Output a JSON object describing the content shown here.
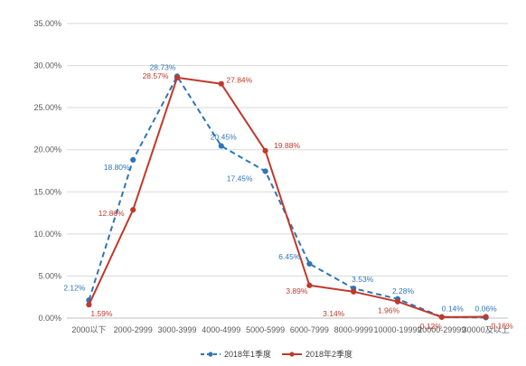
{
  "chart_data": {
    "type": "line",
    "title": "",
    "xlabel": "",
    "ylabel": "",
    "categories": [
      "2000以下",
      "2000-2999",
      "3000-3999",
      "4000-4999",
      "5000-5999",
      "6000-7999",
      "8000-9999",
      "10000-19999",
      "20000-29999",
      "30000及以上"
    ],
    "ylim": [
      0,
      35
    ],
    "yticks": [
      0,
      5,
      10,
      15,
      20,
      25,
      30,
      35
    ],
    "ytick_labels": [
      "0.00%",
      "5.00%",
      "10.00%",
      "15.00%",
      "20.00%",
      "25.00%",
      "30.00%",
      "35.00%"
    ],
    "grid": true,
    "legend_position": "bottom",
    "series": [
      {
        "name": "2018年1季度",
        "color": "#2E75B6",
        "dash": true,
        "values": [
          2.12,
          18.8,
          28.73,
          20.45,
          17.45,
          6.45,
          3.53,
          2.28,
          0.14,
          0.06
        ],
        "labels": [
          "2.12%",
          "18.80%",
          "28.73%",
          "20.45%",
          "17.45%",
          "6.45%",
          "3.53%",
          "2.28%",
          "0.14%",
          "0.06%"
        ]
      },
      {
        "name": "2018年2季度",
        "color": "#C0392B",
        "dash": false,
        "values": [
          1.59,
          12.86,
          28.57,
          27.84,
          19.88,
          3.89,
          3.14,
          1.96,
          0.12,
          0.16
        ],
        "labels": [
          "1.59%",
          "12.86%",
          "28.57%",
          "27.84%",
          "19.88%",
          "3.89%",
          "3.14%",
          "1.96%",
          "0.12%",
          "0.16%"
        ]
      }
    ]
  }
}
